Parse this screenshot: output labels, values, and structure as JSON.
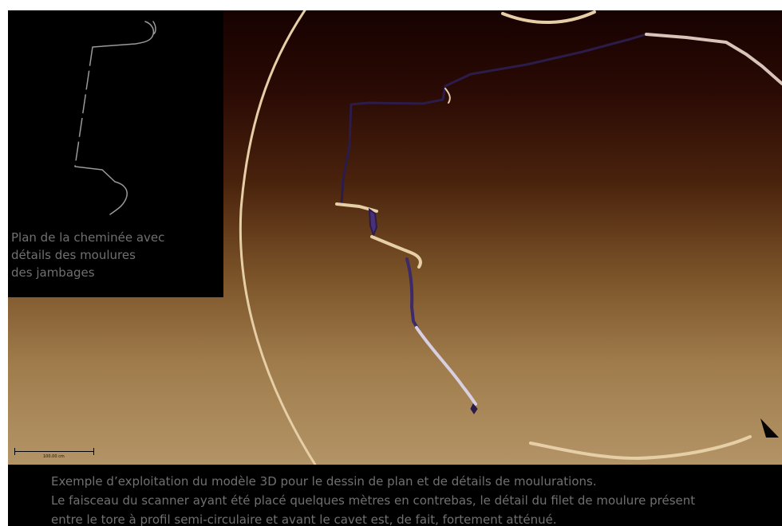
{
  "inset": {
    "caption_lines": [
      "Plan de la cheminée avec",
      "détails des moulures",
      "des jambages"
    ]
  },
  "scale_bar": {
    "label": "100.00 cm"
  },
  "caption": {
    "lines": [
      "Exemple d’exploitation du modèle 3D pour le dessin de plan et de détails de moulurations.",
      "Le faisceau du scanner ayant été placé quelques mètres en contrebas, le détail du filet de moulure présent",
      "entre le tore à profil semi-circulaire et avant le cavet est, de fait, fortement atténué."
    ]
  },
  "colors": {
    "background_top": "#170201",
    "background_bottom": "#b39466",
    "point_cloud_light": "#e6cfa6",
    "point_cloud_dark": "#2b1c4a",
    "caption_text": "#707070",
    "panel_bg": "#000000",
    "profile_line": "#9a9a9a"
  },
  "icons": {
    "marker": "scanner-station-icon"
  }
}
